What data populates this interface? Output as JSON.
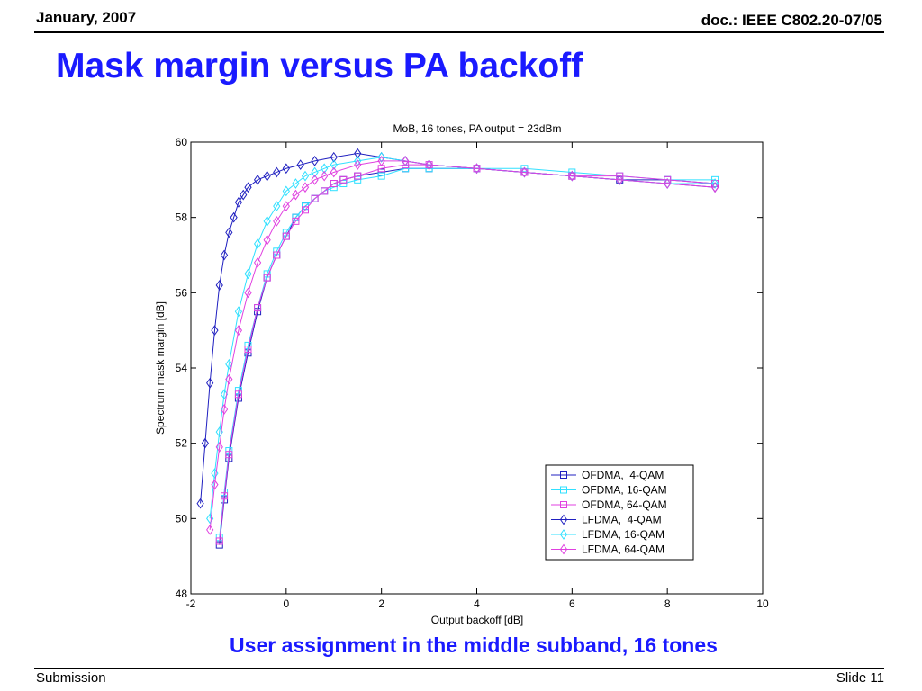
{
  "header": {
    "date": "January, 2007",
    "doc": "doc.: IEEE C802.20-07/05"
  },
  "slide_title": "Mask margin versus PA backoff",
  "caption": "User assignment in the middle subband, 16 tones",
  "footer": {
    "left": "Submission",
    "right": "Slide 11"
  },
  "colors": {
    "blue": "#2020c0",
    "cyan": "#30e0ff",
    "magenta": "#e040e0",
    "title_blue": "#1a1aff"
  },
  "chart_data": {
    "type": "line",
    "title": "MoB, 16 tones, PA output = 23dBm",
    "xlabel": "Output backoff [dB]",
    "ylabel": "Spectrum mask margin [dB]",
    "xlim": [
      -2,
      10
    ],
    "ylim": [
      48,
      60
    ],
    "xticks": [
      -2,
      0,
      2,
      4,
      6,
      8,
      10
    ],
    "yticks": [
      48,
      50,
      52,
      54,
      56,
      58,
      60
    ],
    "grid": false,
    "legend_position": "lower-right",
    "series": [
      {
        "name": "OFDMA,  4-QAM",
        "color": "#2020c0",
        "marker": "square",
        "x": [
          -1.4,
          -1.3,
          -1.2,
          -1.0,
          -0.8,
          -0.6,
          -0.4,
          -0.2,
          0.0,
          0.2,
          0.4,
          0.6,
          0.8,
          1.0,
          1.2,
          1.5,
          2.0,
          2.5,
          3.0,
          4.0,
          5.0,
          6.0,
          7.0,
          8.0,
          9.0
        ],
        "y": [
          49.3,
          50.5,
          51.6,
          53.2,
          54.4,
          55.5,
          56.4,
          57.0,
          57.5,
          58.0,
          58.3,
          58.5,
          58.7,
          58.9,
          59.0,
          59.1,
          59.2,
          59.3,
          59.3,
          59.3,
          59.2,
          59.1,
          59.0,
          59.0,
          58.9
        ]
      },
      {
        "name": "OFDMA, 16-QAM",
        "color": "#30e0ff",
        "marker": "square",
        "x": [
          -1.4,
          -1.3,
          -1.2,
          -1.0,
          -0.8,
          -0.6,
          -0.4,
          -0.2,
          0.0,
          0.2,
          0.4,
          0.6,
          0.8,
          1.0,
          1.2,
          1.5,
          2.0,
          2.5,
          3.0,
          4.0,
          5.0,
          6.0,
          7.0,
          8.0,
          9.0
        ],
        "y": [
          49.5,
          50.7,
          51.8,
          53.4,
          54.6,
          55.6,
          56.5,
          57.1,
          57.6,
          58.0,
          58.3,
          58.5,
          58.7,
          58.8,
          58.9,
          59.0,
          59.1,
          59.3,
          59.3,
          59.3,
          59.3,
          59.2,
          59.1,
          59.0,
          59.0
        ]
      },
      {
        "name": "OFDMA, 64-QAM",
        "color": "#e040e0",
        "marker": "square",
        "x": [
          -1.4,
          -1.3,
          -1.2,
          -1.0,
          -0.8,
          -0.6,
          -0.4,
          -0.2,
          0.0,
          0.2,
          0.4,
          0.6,
          0.8,
          1.0,
          1.2,
          1.5,
          2.0,
          2.5,
          3.0,
          4.0,
          5.0,
          6.0,
          7.0,
          8.0,
          9.0
        ],
        "y": [
          49.4,
          50.6,
          51.7,
          53.3,
          54.5,
          55.6,
          56.4,
          57.0,
          57.5,
          57.9,
          58.2,
          58.5,
          58.7,
          58.9,
          59.0,
          59.1,
          59.3,
          59.4,
          59.4,
          59.3,
          59.2,
          59.1,
          59.1,
          59.0,
          58.9
        ]
      },
      {
        "name": "LFDMA,  4-QAM",
        "color": "#2020c0",
        "marker": "diamond",
        "x": [
          -1.8,
          -1.7,
          -1.6,
          -1.5,
          -1.4,
          -1.3,
          -1.2,
          -1.1,
          -1.0,
          -0.9,
          -0.8,
          -0.6,
          -0.4,
          -0.2,
          0.0,
          0.3,
          0.6,
          1.0,
          1.5,
          2.0,
          2.5,
          3.0,
          4.0,
          5.0,
          6.0,
          7.0,
          8.0,
          9.0
        ],
        "y": [
          50.4,
          52.0,
          53.6,
          55.0,
          56.2,
          57.0,
          57.6,
          58.0,
          58.4,
          58.6,
          58.8,
          59.0,
          59.1,
          59.2,
          59.3,
          59.4,
          59.5,
          59.6,
          59.7,
          59.6,
          59.5,
          59.4,
          59.3,
          59.2,
          59.1,
          59.0,
          58.9,
          58.8
        ]
      },
      {
        "name": "LFDMA, 16-QAM",
        "color": "#30e0ff",
        "marker": "diamond",
        "x": [
          -1.6,
          -1.5,
          -1.4,
          -1.3,
          -1.2,
          -1.0,
          -0.8,
          -0.6,
          -0.4,
          -0.2,
          0.0,
          0.2,
          0.4,
          0.6,
          0.8,
          1.0,
          1.5,
          2.0,
          2.5,
          3.0,
          4.0,
          5.0,
          6.0,
          7.0,
          8.0,
          9.0
        ],
        "y": [
          50.0,
          51.2,
          52.3,
          53.3,
          54.1,
          55.5,
          56.5,
          57.3,
          57.9,
          58.3,
          58.7,
          58.9,
          59.1,
          59.2,
          59.3,
          59.4,
          59.5,
          59.6,
          59.5,
          59.4,
          59.3,
          59.2,
          59.1,
          59.0,
          58.9,
          58.9
        ]
      },
      {
        "name": "LFDMA, 64-QAM",
        "color": "#e040e0",
        "marker": "diamond",
        "x": [
          -1.6,
          -1.5,
          -1.4,
          -1.3,
          -1.2,
          -1.0,
          -0.8,
          -0.6,
          -0.4,
          -0.2,
          0.0,
          0.2,
          0.4,
          0.6,
          0.8,
          1.0,
          1.5,
          2.0,
          2.5,
          3.0,
          4.0,
          5.0,
          6.0,
          7.0,
          8.0,
          9.0
        ],
        "y": [
          49.7,
          50.9,
          51.9,
          52.9,
          53.7,
          55.0,
          56.0,
          56.8,
          57.4,
          57.9,
          58.3,
          58.6,
          58.8,
          59.0,
          59.1,
          59.2,
          59.4,
          59.5,
          59.5,
          59.4,
          59.3,
          59.2,
          59.1,
          59.0,
          58.9,
          58.8
        ]
      }
    ]
  }
}
